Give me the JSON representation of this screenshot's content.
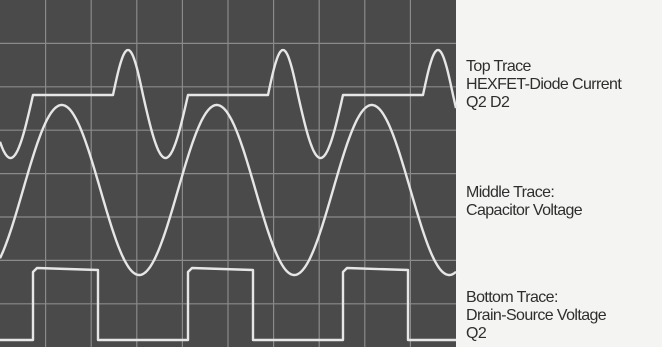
{
  "labels": {
    "top": [
      "Top Trace",
      "HEXFET-Diode Current",
      "Q2 D2"
    ],
    "middle": [
      "Middle Trace:",
      "Capacitor Voltage"
    ],
    "bottom": [
      "Bottom Trace:",
      "Drain-Source Voltage",
      "Q2"
    ]
  }
}
